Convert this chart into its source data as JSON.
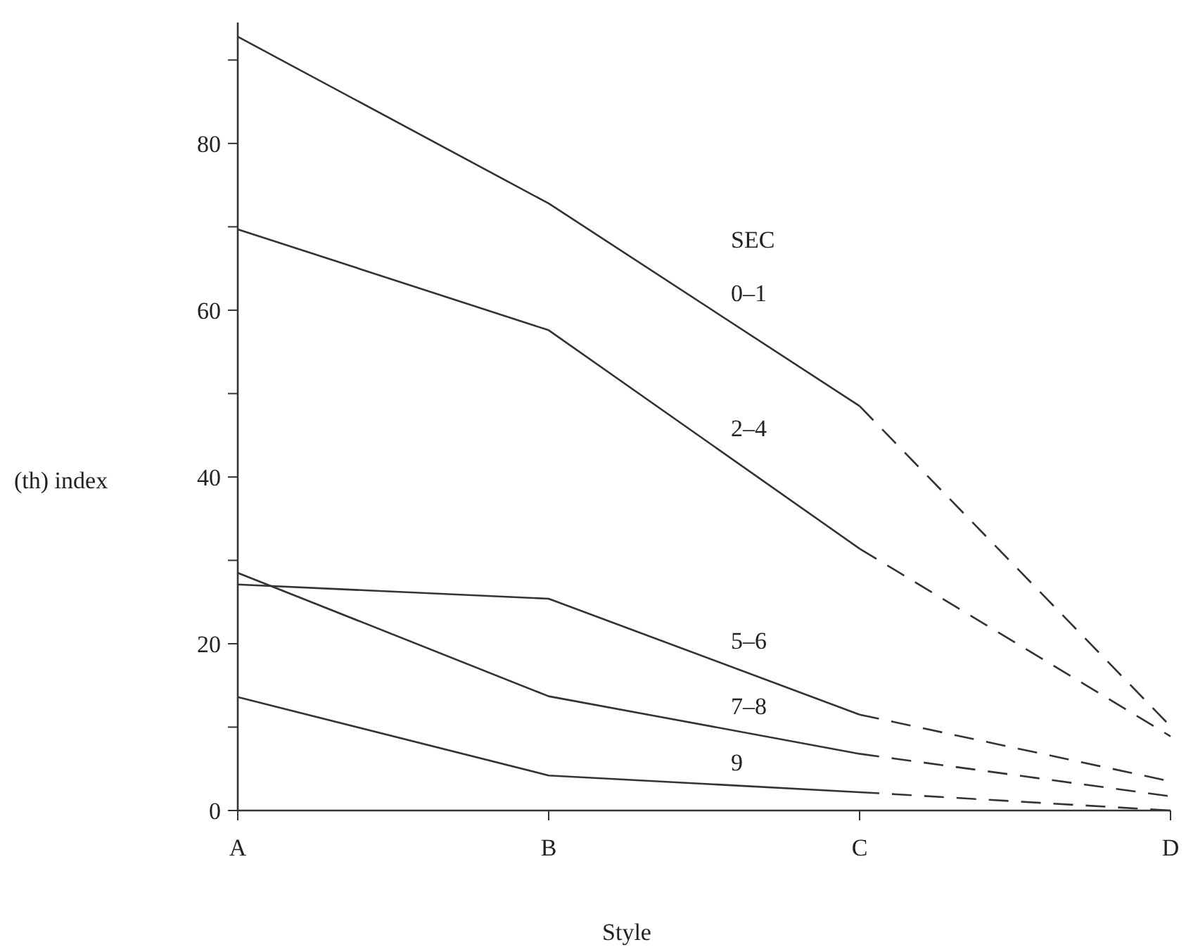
{
  "chart_data": {
    "type": "line",
    "xlabel": "Style",
    "ylabel": "(th) index",
    "legend_title": "SEC",
    "categories": [
      "A",
      "B",
      "C",
      "D"
    ],
    "ylim": [
      0,
      94.5
    ],
    "yticks": [
      0,
      {
        "value": 10,
        "label": null
      },
      20,
      {
        "value": 30,
        "label": null
      },
      40,
      {
        "value": 50,
        "label": null
      },
      60,
      {
        "value": 70,
        "label": null
      },
      80,
      {
        "value": 90,
        "label": null
      }
    ],
    "series": [
      {
        "name": "0–1",
        "color": "#333333",
        "line_style": "solid",
        "values": [
          92.8,
          72.8,
          48.5,
          null
        ]
      },
      {
        "name": "2–4",
        "color": "#333333",
        "line_style": "solid",
        "values": [
          69.7,
          57.6,
          31.4,
          null
        ]
      },
      {
        "name": "5–6",
        "color": "#333333",
        "line_style": "solid",
        "values": [
          27.1,
          25.4,
          11.5,
          null
        ]
      },
      {
        "name": "7–8",
        "color": "#333333",
        "line_style": "solid",
        "values": [
          28.5,
          13.7,
          6.8,
          null
        ]
      },
      {
        "name": "9",
        "color": "#333333",
        "line_style": "solid",
        "values": [
          13.6,
          4.2,
          2.2,
          null
        ]
      },
      {
        "color": "#333333",
        "line_style": "dashed",
        "values": [
          null,
          null,
          48.5,
          10.1
        ]
      },
      {
        "color": "#333333",
        "line_style": "dashed",
        "values": [
          null,
          null,
          31.4,
          8.9
        ]
      },
      {
        "color": "#333333",
        "line_style": "dashed",
        "values": [
          null,
          null,
          11.5,
          3.5
        ]
      },
      {
        "color": "#333333",
        "line_style": "dashed",
        "values": [
          null,
          null,
          6.8,
          1.7
        ]
      },
      {
        "color": "#333333",
        "line_style": "dashed",
        "values": [
          null,
          null,
          2.2,
          0
        ]
      }
    ]
  }
}
